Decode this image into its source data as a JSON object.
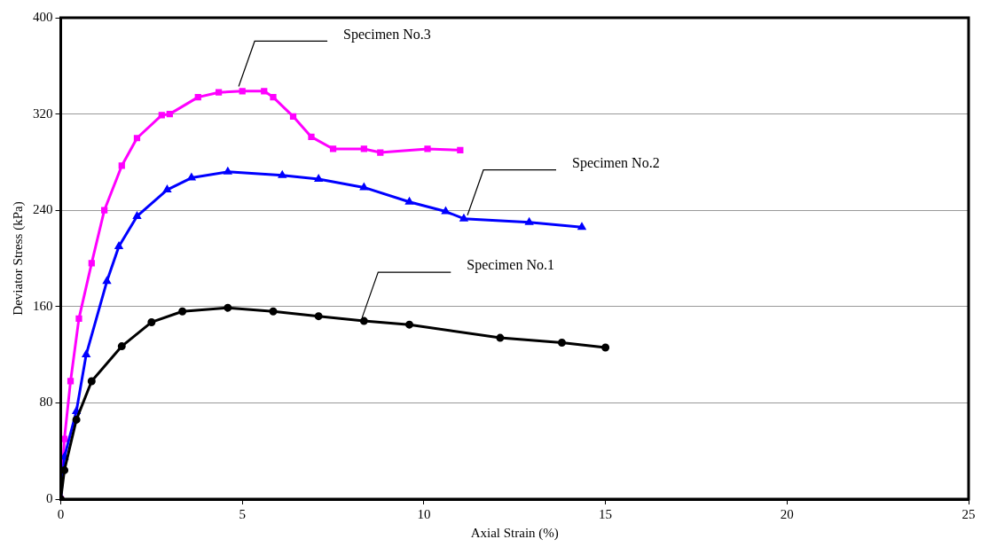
{
  "chart_data": {
    "type": "line",
    "xlabel": "Axial Strain (%)",
    "ylabel": "Deviator Stress (kPa)",
    "xlim": [
      0,
      25
    ],
    "xticks": [
      0,
      5,
      10,
      15,
      20,
      25
    ],
    "ylim": [
      0,
      400
    ],
    "yticks": [
      0,
      80,
      160,
      240,
      320,
      400
    ],
    "grid": "y",
    "legend": false,
    "series": [
      {
        "color": "#000000",
        "marker": "circle",
        "x": [
          0,
          0.1,
          0.43,
          0.85,
          1.68,
          2.5,
          3.35,
          4.6,
          5.85,
          7.1,
          8.35,
          9.6,
          12.1,
          13.8,
          15.0
        ],
        "values": [
          0,
          24,
          66,
          98,
          127,
          147,
          156,
          159,
          156,
          152,
          148,
          145,
          134,
          130,
          126
        ]
      },
      {
        "color": "#0000ff",
        "marker": "triangle",
        "x": [
          0,
          0.1,
          0.43,
          0.7,
          1.27,
          1.6,
          2.1,
          2.93,
          3.6,
          4.6,
          6.1,
          7.1,
          8.35,
          9.6,
          10.6,
          11.1,
          12.9,
          14.35
        ],
        "values": [
          0,
          35,
          73,
          120,
          181,
          210,
          235,
          257,
          267,
          272,
          269,
          266,
          259,
          247,
          239,
          233,
          230,
          226
        ]
      },
      {
        "color": "#ff00ff",
        "marker": "square",
        "x": [
          0,
          0.1,
          0.27,
          0.5,
          0.85,
          1.2,
          1.68,
          2.1,
          2.78,
          3.0,
          3.78,
          4.35,
          5.0,
          5.6,
          5.85,
          6.4,
          6.9,
          7.5,
          8.35,
          8.8,
          10.1,
          11.0
        ],
        "values": [
          0,
          50,
          98,
          150,
          196,
          240,
          277,
          300,
          319,
          320,
          334,
          338,
          339,
          339,
          334,
          318,
          301,
          291,
          291,
          288,
          291,
          290
        ]
      }
    ],
    "annotations": [
      {
        "text": "Specimen No.1",
        "x": 8.3,
        "y": 148
      },
      {
        "text": "Specimen No.2",
        "x": 11.2,
        "y": 233
      },
      {
        "text": "Specimen No.3",
        "x": 4.9,
        "y": 340
      }
    ]
  }
}
